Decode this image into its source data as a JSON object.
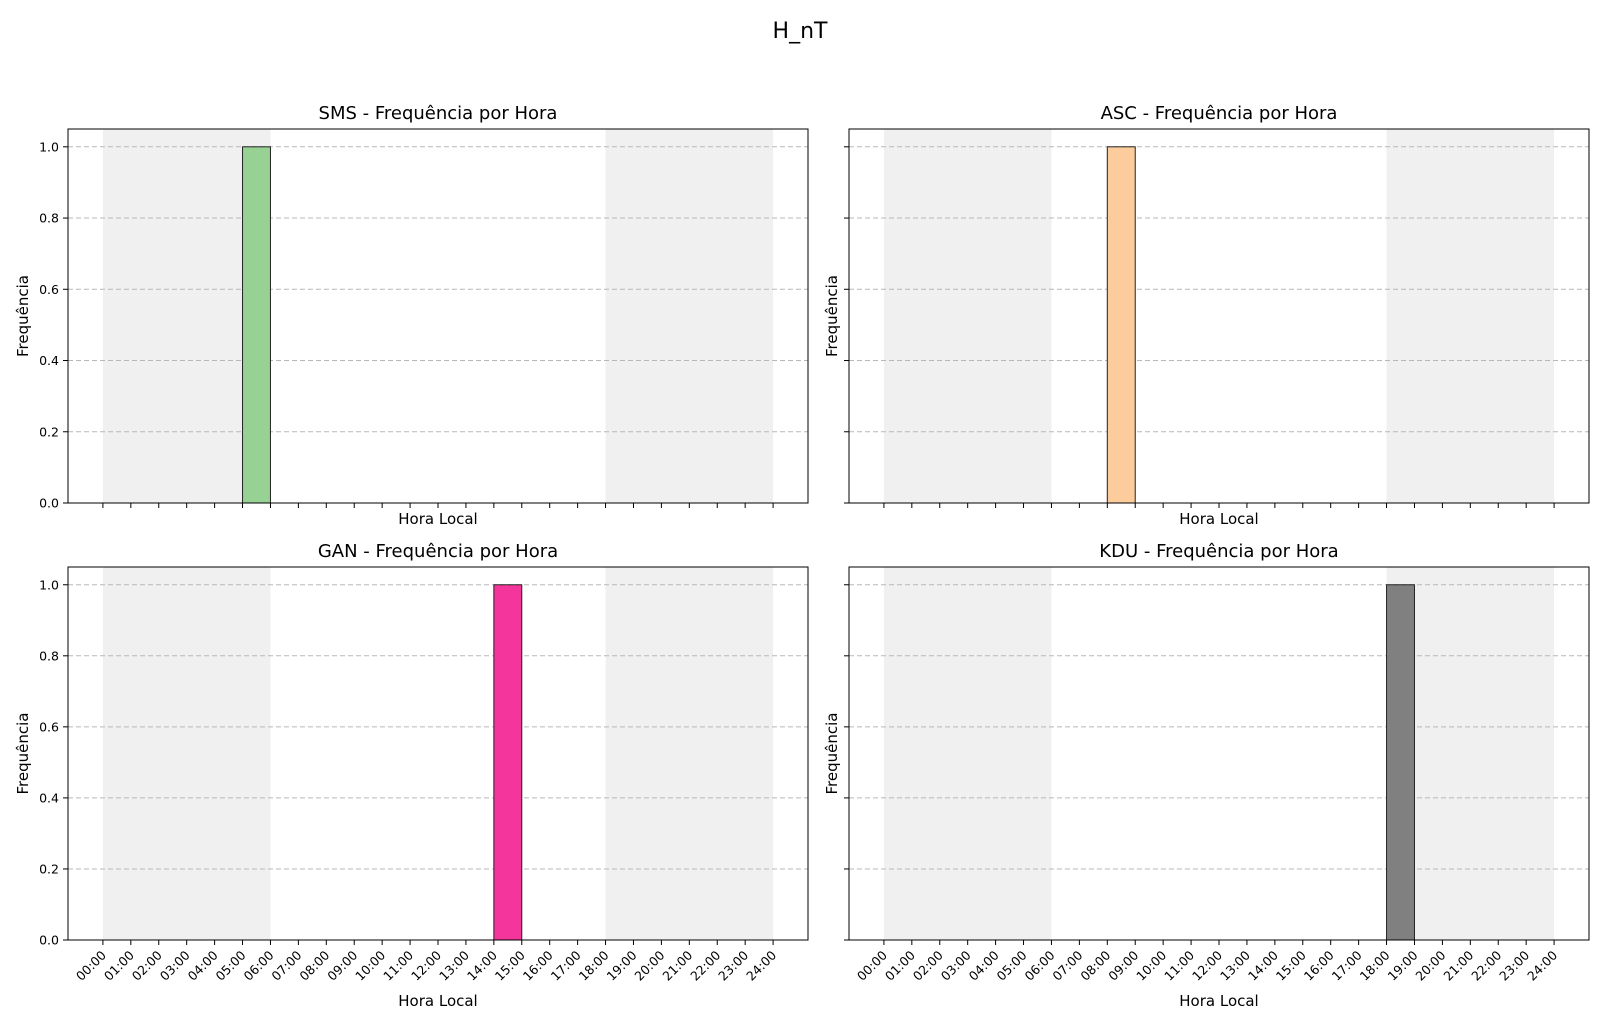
{
  "figure": {
    "title": "H_nT"
  },
  "chart_data": [
    {
      "type": "bar",
      "title": "SMS - Frequência por Hora",
      "xlabel": "Hora Local",
      "ylabel": "Frequência",
      "bar_color": "#98d194",
      "xticklabels": [
        "00:00",
        "01:00",
        "02:00",
        "03:00",
        "04:00",
        "05:00",
        "06:00",
        "07:00",
        "08:00",
        "09:00",
        "10:00",
        "11:00",
        "12:00",
        "13:00",
        "14:00",
        "15:00",
        "16:00",
        "17:00",
        "18:00",
        "19:00",
        "20:00",
        "21:00",
        "22:00",
        "23:00",
        "24:00"
      ],
      "show_xticklabels": false,
      "yticklabels": [
        "0.0",
        "0.2",
        "0.4",
        "0.6",
        "0.8",
        "1.0"
      ],
      "show_yticklabels": true,
      "bars": [
        {
          "hour": 5,
          "value": 1.0
        }
      ],
      "night_shading": [
        [
          0,
          6
        ],
        [
          18,
          24
        ]
      ],
      "shade_color": "#f0f0f0",
      "xlim": [
        -1.25,
        25.25
      ],
      "ylim": [
        0,
        1.05
      ],
      "grid": "y dashed"
    },
    {
      "type": "bar",
      "title": "ASC - Frequência por Hora",
      "xlabel": "Hora Local",
      "ylabel": "Frequência",
      "bar_color": "#fccc9c",
      "xticklabels": [
        "00:00",
        "01:00",
        "02:00",
        "03:00",
        "04:00",
        "05:00",
        "06:00",
        "07:00",
        "08:00",
        "09:00",
        "10:00",
        "11:00",
        "12:00",
        "13:00",
        "14:00",
        "15:00",
        "16:00",
        "17:00",
        "18:00",
        "19:00",
        "20:00",
        "21:00",
        "22:00",
        "23:00",
        "24:00"
      ],
      "show_xticklabels": false,
      "yticklabels": [
        "0.0",
        "0.2",
        "0.4",
        "0.6",
        "0.8",
        "1.0"
      ],
      "show_yticklabels": false,
      "bars": [
        {
          "hour": 8,
          "value": 1.0
        }
      ],
      "night_shading": [
        [
          0,
          6
        ],
        [
          18,
          24
        ]
      ],
      "shade_color": "#f0f0f0",
      "xlim": [
        -1.25,
        25.25
      ],
      "ylim": [
        0,
        1.05
      ],
      "grid": "y dashed"
    },
    {
      "type": "bar",
      "title": "GAN - Frequência por Hora",
      "xlabel": "Hora Local",
      "ylabel": "Frequência",
      "bar_color": "#f4369c",
      "xticklabels": [
        "00:00",
        "01:00",
        "02:00",
        "03:00",
        "04:00",
        "05:00",
        "06:00",
        "07:00",
        "08:00",
        "09:00",
        "10:00",
        "11:00",
        "12:00",
        "13:00",
        "14:00",
        "15:00",
        "16:00",
        "17:00",
        "18:00",
        "19:00",
        "20:00",
        "21:00",
        "22:00",
        "23:00",
        "24:00"
      ],
      "show_xticklabels": true,
      "yticklabels": [
        "0.0",
        "0.2",
        "0.4",
        "0.6",
        "0.8",
        "1.0"
      ],
      "show_yticklabels": true,
      "bars": [
        {
          "hour": 14,
          "value": 1.0
        }
      ],
      "night_shading": [
        [
          0,
          6
        ],
        [
          18,
          24
        ]
      ],
      "shade_color": "#f0f0f0",
      "xlim": [
        -1.25,
        25.25
      ],
      "ylim": [
        0,
        1.05
      ],
      "grid": "y dashed"
    },
    {
      "type": "bar",
      "title": "KDU - Frequência por Hora",
      "xlabel": "Hora Local",
      "ylabel": "Frequência",
      "bar_color": "#808080",
      "xticklabels": [
        "00:00",
        "01:00",
        "02:00",
        "03:00",
        "04:00",
        "05:00",
        "06:00",
        "07:00",
        "08:00",
        "09:00",
        "10:00",
        "11:00",
        "12:00",
        "13:00",
        "14:00",
        "15:00",
        "16:00",
        "17:00",
        "18:00",
        "19:00",
        "20:00",
        "21:00",
        "22:00",
        "23:00",
        "24:00"
      ],
      "show_xticklabels": true,
      "yticklabels": [
        "0.0",
        "0.2",
        "0.4",
        "0.6",
        "0.8",
        "1.0"
      ],
      "show_yticklabels": false,
      "bars": [
        {
          "hour": 18,
          "value": 1.0
        }
      ],
      "night_shading": [
        [
          0,
          6
        ],
        [
          18,
          24
        ]
      ],
      "shade_color": "#f0f0f0",
      "xlim": [
        -1.25,
        25.25
      ],
      "ylim": [
        0,
        1.05
      ],
      "grid": "y dashed"
    }
  ]
}
